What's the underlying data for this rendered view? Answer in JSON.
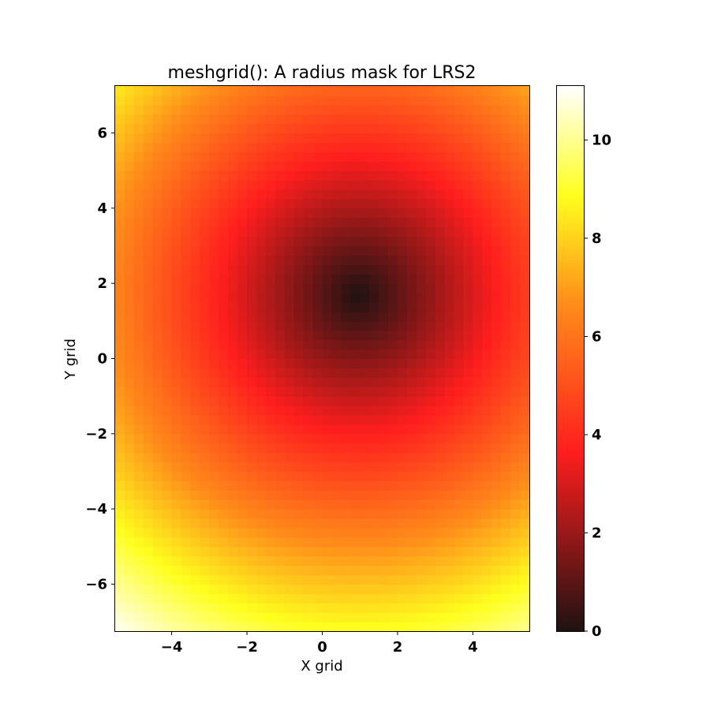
{
  "chart_data": {
    "type": "heatmap",
    "title": "meshgrid(): A radius mask for LRS2",
    "xlabel": "X grid",
    "ylabel": "Y grid",
    "xlim": [
      -5.5,
      5.5
    ],
    "ylim": [
      -7.25,
      7.25
    ],
    "grid_shape": [
      58,
      44
    ],
    "center": {
      "x": 0.95,
      "y": 1.7
    },
    "value": "radius = sqrt((x - 0.95)^2 + (y - 1.7)^2)",
    "colormap": "hot",
    "colormap_stops": [
      {
        "v": 0.0,
        "color": "#1e1212"
      },
      {
        "v": 0.33,
        "color": "#ff1e1e"
      },
      {
        "v": 0.6,
        "color": "#ff8c1a"
      },
      {
        "v": 0.8,
        "color": "#ffff1e"
      },
      {
        "v": 1.0,
        "color": "#ffffff"
      }
    ],
    "vmin": 0,
    "vmax": 11.1,
    "xticks": [
      -4,
      -2,
      0,
      2,
      4
    ],
    "xtick_labels": [
      "−4",
      "−2",
      "0",
      "2",
      "4"
    ],
    "yticks": [
      -6,
      -4,
      -2,
      0,
      2,
      4,
      6
    ],
    "ytick_labels": [
      "−6",
      "−4",
      "−2",
      "0",
      "2",
      "4",
      "6"
    ],
    "colorbar": {
      "ticks": [
        0,
        2,
        4,
        6,
        8,
        10
      ],
      "tick_labels": [
        "0",
        "2",
        "4",
        "6",
        "8",
        "10"
      ]
    }
  }
}
